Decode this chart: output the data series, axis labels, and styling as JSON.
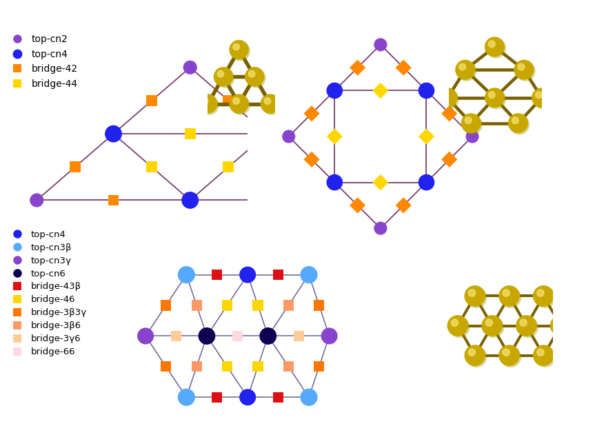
{
  "background": "#ffffff",
  "line_color": "#7B3F6E",
  "line_width": 1.3,
  "legend1": [
    {
      "label": "top-cn2",
      "color": "#8844CC",
      "marker": "o",
      "ms": 9
    },
    {
      "label": "top-cn4",
      "color": "#2222EE",
      "marker": "o",
      "ms": 10
    },
    {
      "label": "bridge-42",
      "color": "#FF8800",
      "marker": "s",
      "ms": 8
    },
    {
      "label": "bridge-44",
      "color": "#FFD700",
      "marker": "s",
      "ms": 8
    }
  ],
  "legend2": [
    {
      "label": "top-cn4",
      "color": "#2222EE",
      "marker": "o",
      "ms": 9
    },
    {
      "label": "top-cn3β",
      "color": "#55AAFF",
      "marker": "o",
      "ms": 9
    },
    {
      "label": "top-cn3γ",
      "color": "#8844CC",
      "marker": "o",
      "ms": 9
    },
    {
      "label": "top-cn6",
      "color": "#0D0050",
      "marker": "o",
      "ms": 9
    },
    {
      "label": "bridge-43β",
      "color": "#DD1111",
      "marker": "s",
      "ms": 8
    },
    {
      "label": "bridge-46",
      "color": "#FFD700",
      "marker": "s",
      "ms": 8
    },
    {
      "label": "bridge-3β3γ",
      "color": "#FF7700",
      "marker": "s",
      "ms": 8
    },
    {
      "label": "bridge-3β6",
      "color": "#FF9966",
      "marker": "s",
      "ms": 8
    },
    {
      "label": "bridge-3γ6",
      "color": "#FFCC99",
      "marker": "s",
      "ms": 8
    },
    {
      "label": "bridge-66",
      "color": "#FFD8E0",
      "marker": "s",
      "ms": 8
    }
  ],
  "colors": {
    "cn2": "#8844CC",
    "cn4": "#2222EE",
    "b42": "#FF8800",
    "b44": "#FFD700",
    "cn3b": "#55AAFF",
    "cn3g": "#8844CC",
    "cn6": "#0D0050",
    "b43b": "#DD1111",
    "b46": "#FFD700",
    "b3b3g": "#FF7700",
    "b3b6": "#FF9966",
    "b3g6": "#FFCC99",
    "b66": "#FFD8E0"
  }
}
